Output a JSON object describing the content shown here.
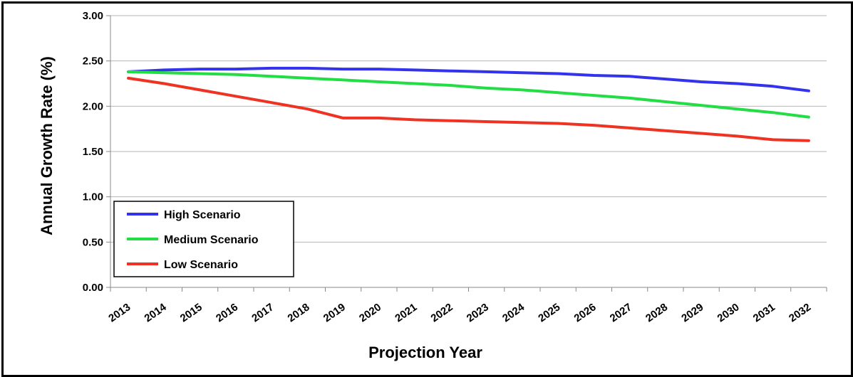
{
  "chart_data": {
    "type": "line",
    "title": "",
    "xlabel": "Projection Year",
    "ylabel": "Annual Growth Rate (%)",
    "ylim": [
      0,
      3
    ],
    "yticks": [
      "0.00",
      "0.50",
      "1.00",
      "1.50",
      "2.00",
      "2.50",
      "3.00"
    ],
    "x": [
      "2013",
      "2014",
      "2015",
      "2016",
      "2017",
      "2018",
      "2019",
      "2020",
      "2021",
      "2022",
      "2023",
      "2024",
      "2025",
      "2026",
      "2027",
      "2028",
      "2029",
      "2030",
      "2031",
      "2032"
    ],
    "grid": "horizontal",
    "legend_position": "bottom-left",
    "series": [
      {
        "name": "High Scenario",
        "color": "#3333ee",
        "values": [
          2.38,
          2.4,
          2.41,
          2.41,
          2.42,
          2.42,
          2.41,
          2.41,
          2.4,
          2.39,
          2.38,
          2.37,
          2.36,
          2.34,
          2.33,
          2.3,
          2.27,
          2.25,
          2.22,
          2.17
        ]
      },
      {
        "name": "Medium Scenario",
        "color": "#22dd44",
        "values": [
          2.38,
          2.37,
          2.36,
          2.35,
          2.33,
          2.31,
          2.29,
          2.27,
          2.25,
          2.23,
          2.2,
          2.18,
          2.15,
          2.12,
          2.09,
          2.05,
          2.01,
          1.97,
          1.93,
          1.88
        ]
      },
      {
        "name": "Low Scenario",
        "color": "#ee3322",
        "values": [
          2.31,
          2.25,
          2.18,
          2.11,
          2.04,
          1.97,
          1.87,
          1.87,
          1.85,
          1.84,
          1.83,
          1.82,
          1.81,
          1.79,
          1.76,
          1.73,
          1.7,
          1.67,
          1.63,
          1.62
        ]
      }
    ]
  }
}
